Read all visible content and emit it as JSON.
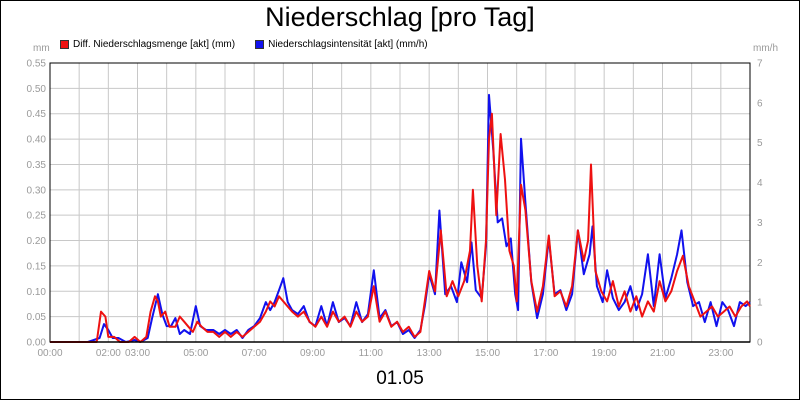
{
  "title": "Niederschlag [pro Tag]",
  "date_label": "01.05",
  "left_unit": "mm",
  "right_unit": "mm/h",
  "chart_data": {
    "type": "line",
    "title": "Niederschlag [pro Tag]",
    "xlabel": "01.05",
    "y_left": {
      "label": "mm",
      "ylim": [
        0,
        0.55
      ],
      "ticks": [
        "0.00",
        "0.05",
        "0.10",
        "0.15",
        "0.20",
        "0.25",
        "0.30",
        "0.35",
        "0.40",
        "0.45",
        "0.50",
        "0.55"
      ]
    },
    "y_right": {
      "label": "mm/h",
      "ylim": [
        0,
        7
      ],
      "ticks": [
        "0",
        "1",
        "2",
        "3",
        "4",
        "5",
        "6",
        "7"
      ]
    },
    "x_ticks": [
      "00:00",
      "02:00",
      "03:00",
      "05:00",
      "07:00",
      "09:00",
      "11:00",
      "13:00",
      "15:00",
      "17:00",
      "19:00",
      "21:00",
      "23:00"
    ],
    "x_tick_hours": [
      0,
      2,
      3,
      5,
      7,
      9,
      11,
      13,
      15,
      17,
      19,
      21,
      23
    ],
    "grid": true,
    "legend": "top-left",
    "series": [
      {
        "name": "Diff. Niederschlagsmenge [akt] (mm)",
        "axis": "left",
        "color": "#ee1111",
        "points": [
          [
            0,
            0
          ],
          [
            1.3,
            0
          ],
          [
            1.6,
            0
          ],
          [
            1.75,
            0.06
          ],
          [
            1.9,
            0.05
          ],
          [
            2.0,
            0.01
          ],
          [
            2.2,
            0.01
          ],
          [
            2.4,
            0
          ],
          [
            2.7,
            0
          ],
          [
            2.9,
            0.01
          ],
          [
            3.1,
            0
          ],
          [
            3.3,
            0.01
          ],
          [
            3.45,
            0.06
          ],
          [
            3.6,
            0.09
          ],
          [
            3.7,
            0.08
          ],
          [
            3.8,
            0.05
          ],
          [
            3.95,
            0.06
          ],
          [
            4.1,
            0.03
          ],
          [
            4.3,
            0.03
          ],
          [
            4.45,
            0.05
          ],
          [
            4.6,
            0.04
          ],
          [
            4.75,
            0.03
          ],
          [
            4.9,
            0.02
          ],
          [
            5.05,
            0.04
          ],
          [
            5.2,
            0.03
          ],
          [
            5.4,
            0.02
          ],
          [
            5.6,
            0.02
          ],
          [
            5.8,
            0.01
          ],
          [
            6.0,
            0.02
          ],
          [
            6.2,
            0.01
          ],
          [
            6.4,
            0.02
          ],
          [
            6.6,
            0.01
          ],
          [
            6.8,
            0.02
          ],
          [
            7.0,
            0.03
          ],
          [
            7.2,
            0.04
          ],
          [
            7.4,
            0.06
          ],
          [
            7.55,
            0.08
          ],
          [
            7.7,
            0.07
          ],
          [
            7.85,
            0.09
          ],
          [
            8.0,
            0.08
          ],
          [
            8.15,
            0.07
          ],
          [
            8.3,
            0.06
          ],
          [
            8.5,
            0.05
          ],
          [
            8.7,
            0.06
          ],
          [
            8.9,
            0.04
          ],
          [
            9.1,
            0.03
          ],
          [
            9.3,
            0.05
          ],
          [
            9.5,
            0.03
          ],
          [
            9.7,
            0.06
          ],
          [
            9.9,
            0.04
          ],
          [
            10.1,
            0.05
          ],
          [
            10.3,
            0.03
          ],
          [
            10.5,
            0.06
          ],
          [
            10.7,
            0.04
          ],
          [
            10.9,
            0.05
          ],
          [
            11.1,
            0.11
          ],
          [
            11.3,
            0.04
          ],
          [
            11.5,
            0.06
          ],
          [
            11.7,
            0.03
          ],
          [
            11.9,
            0.04
          ],
          [
            12.1,
            0.02
          ],
          [
            12.3,
            0.03
          ],
          [
            12.5,
            0.01
          ],
          [
            12.7,
            0.02
          ],
          [
            12.85,
            0.08
          ],
          [
            13.0,
            0.14
          ],
          [
            13.2,
            0.1
          ],
          [
            13.4,
            0.22
          ],
          [
            13.6,
            0.09
          ],
          [
            13.8,
            0.12
          ],
          [
            14.0,
            0.09
          ],
          [
            14.2,
            0.12
          ],
          [
            14.4,
            0.18
          ],
          [
            14.5,
            0.3
          ],
          [
            14.65,
            0.15
          ],
          [
            14.8,
            0.08
          ],
          [
            14.95,
            0.2
          ],
          [
            15.05,
            0.4
          ],
          [
            15.15,
            0.45
          ],
          [
            15.3,
            0.25
          ],
          [
            15.45,
            0.41
          ],
          [
            15.6,
            0.32
          ],
          [
            15.75,
            0.18
          ],
          [
            15.9,
            0.15
          ],
          [
            16.0,
            0.08
          ],
          [
            16.15,
            0.31
          ],
          [
            16.3,
            0.26
          ],
          [
            16.5,
            0.12
          ],
          [
            16.7,
            0.06
          ],
          [
            16.9,
            0.11
          ],
          [
            17.1,
            0.21
          ],
          [
            17.3,
            0.09
          ],
          [
            17.5,
            0.1
          ],
          [
            17.7,
            0.07
          ],
          [
            17.9,
            0.11
          ],
          [
            18.1,
            0.22
          ],
          [
            18.3,
            0.16
          ],
          [
            18.45,
            0.2
          ],
          [
            18.55,
            0.35
          ],
          [
            18.7,
            0.14
          ],
          [
            18.9,
            0.1
          ],
          [
            19.1,
            0.08
          ],
          [
            19.3,
            0.12
          ],
          [
            19.5,
            0.07
          ],
          [
            19.7,
            0.1
          ],
          [
            19.9,
            0.06
          ],
          [
            20.1,
            0.09
          ],
          [
            20.3,
            0.05
          ],
          [
            20.5,
            0.08
          ],
          [
            20.7,
            0.06
          ],
          [
            20.9,
            0.12
          ],
          [
            21.1,
            0.08
          ],
          [
            21.3,
            0.1
          ],
          [
            21.5,
            0.14
          ],
          [
            21.7,
            0.17
          ],
          [
            21.9,
            0.11
          ],
          [
            22.1,
            0.08
          ],
          [
            22.3,
            0.05
          ],
          [
            22.5,
            0.06
          ],
          [
            22.7,
            0.07
          ],
          [
            22.9,
            0.05
          ],
          [
            23.1,
            0.06
          ],
          [
            23.3,
            0.07
          ],
          [
            23.5,
            0.05
          ],
          [
            23.7,
            0.07
          ],
          [
            23.9,
            0.08
          ],
          [
            24,
            0.07
          ]
        ]
      },
      {
        "name": "Niederschlagsintensität [akt] (mm/h)",
        "axis": "right",
        "color": "#1111ee",
        "points": [
          [
            0,
            0
          ],
          [
            1.3,
            0
          ],
          [
            1.5,
            0.05
          ],
          [
            1.7,
            0.1
          ],
          [
            1.85,
            0.45
          ],
          [
            2.0,
            0.3
          ],
          [
            2.15,
            0.1
          ],
          [
            2.35,
            0.1
          ],
          [
            2.6,
            0
          ],
          [
            2.9,
            0.05
          ],
          [
            3.1,
            0
          ],
          [
            3.35,
            0.1
          ],
          [
            3.5,
            0.6
          ],
          [
            3.7,
            1.2
          ],
          [
            3.85,
            0.7
          ],
          [
            4.0,
            0.4
          ],
          [
            4.15,
            0.4
          ],
          [
            4.3,
            0.6
          ],
          [
            4.45,
            0.2
          ],
          [
            4.6,
            0.3
          ],
          [
            4.8,
            0.2
          ],
          [
            5.0,
            0.9
          ],
          [
            5.15,
            0.4
          ],
          [
            5.35,
            0.3
          ],
          [
            5.6,
            0.3
          ],
          [
            5.8,
            0.2
          ],
          [
            6.0,
            0.3
          ],
          [
            6.2,
            0.2
          ],
          [
            6.4,
            0.3
          ],
          [
            6.6,
            0.1
          ],
          [
            6.8,
            0.3
          ],
          [
            7.0,
            0.4
          ],
          [
            7.2,
            0.6
          ],
          [
            7.4,
            1.0
          ],
          [
            7.55,
            0.8
          ],
          [
            7.7,
            1.0
          ],
          [
            7.85,
            1.3
          ],
          [
            8.0,
            1.6
          ],
          [
            8.15,
            1.0
          ],
          [
            8.3,
            0.8
          ],
          [
            8.5,
            0.7
          ],
          [
            8.7,
            0.9
          ],
          [
            8.9,
            0.5
          ],
          [
            9.1,
            0.4
          ],
          [
            9.3,
            0.9
          ],
          [
            9.5,
            0.4
          ],
          [
            9.7,
            1.0
          ],
          [
            9.9,
            0.5
          ],
          [
            10.1,
            0.6
          ],
          [
            10.3,
            0.4
          ],
          [
            10.5,
            1.0
          ],
          [
            10.7,
            0.5
          ],
          [
            10.9,
            0.7
          ],
          [
            11.1,
            1.8
          ],
          [
            11.3,
            0.6
          ],
          [
            11.5,
            0.8
          ],
          [
            11.7,
            0.4
          ],
          [
            11.9,
            0.5
          ],
          [
            12.1,
            0.2
          ],
          [
            12.3,
            0.3
          ],
          [
            12.5,
            0.1
          ],
          [
            12.7,
            0.3
          ],
          [
            12.85,
            0.9
          ],
          [
            13.0,
            1.7
          ],
          [
            13.2,
            1.2
          ],
          [
            13.35,
            3.3
          ],
          [
            13.55,
            1.2
          ],
          [
            13.75,
            1.4
          ],
          [
            13.95,
            1.0
          ],
          [
            14.1,
            2.0
          ],
          [
            14.3,
            1.5
          ],
          [
            14.45,
            2.5
          ],
          [
            14.6,
            1.3
          ],
          [
            14.8,
            1.1
          ],
          [
            14.95,
            2.4
          ],
          [
            15.05,
            6.2
          ],
          [
            15.2,
            4.8
          ],
          [
            15.35,
            3.0
          ],
          [
            15.5,
            3.1
          ],
          [
            15.65,
            2.4
          ],
          [
            15.8,
            2.6
          ],
          [
            15.95,
            1.2
          ],
          [
            16.05,
            0.8
          ],
          [
            16.15,
            5.1
          ],
          [
            16.3,
            3.5
          ],
          [
            16.5,
            1.5
          ],
          [
            16.7,
            0.6
          ],
          [
            16.9,
            1.2
          ],
          [
            17.1,
            2.6
          ],
          [
            17.3,
            1.2
          ],
          [
            17.5,
            1.3
          ],
          [
            17.7,
            0.8
          ],
          [
            17.9,
            1.2
          ],
          [
            18.1,
            2.8
          ],
          [
            18.3,
            1.7
          ],
          [
            18.5,
            2.2
          ],
          [
            18.6,
            2.9
          ],
          [
            18.75,
            1.4
          ],
          [
            18.95,
            1.0
          ],
          [
            19.1,
            1.8
          ],
          [
            19.3,
            1.1
          ],
          [
            19.5,
            0.8
          ],
          [
            19.7,
            1.0
          ],
          [
            19.9,
            1.4
          ],
          [
            20.1,
            0.8
          ],
          [
            20.3,
            1.2
          ],
          [
            20.5,
            2.2
          ],
          [
            20.7,
            0.9
          ],
          [
            20.9,
            2.2
          ],
          [
            21.1,
            1.1
          ],
          [
            21.3,
            1.6
          ],
          [
            21.5,
            2.2
          ],
          [
            21.65,
            2.8
          ],
          [
            21.85,
            1.5
          ],
          [
            22.05,
            0.9
          ],
          [
            22.25,
            1.0
          ],
          [
            22.45,
            0.5
          ],
          [
            22.65,
            1.0
          ],
          [
            22.85,
            0.4
          ],
          [
            23.05,
            1.0
          ],
          [
            23.25,
            0.8
          ],
          [
            23.45,
            0.4
          ],
          [
            23.65,
            1.0
          ],
          [
            23.85,
            0.9
          ],
          [
            24,
            1.0
          ]
        ]
      }
    ]
  },
  "colors": {
    "grid": "#c8c8c8",
    "axis_text": "#9a9a9a"
  }
}
